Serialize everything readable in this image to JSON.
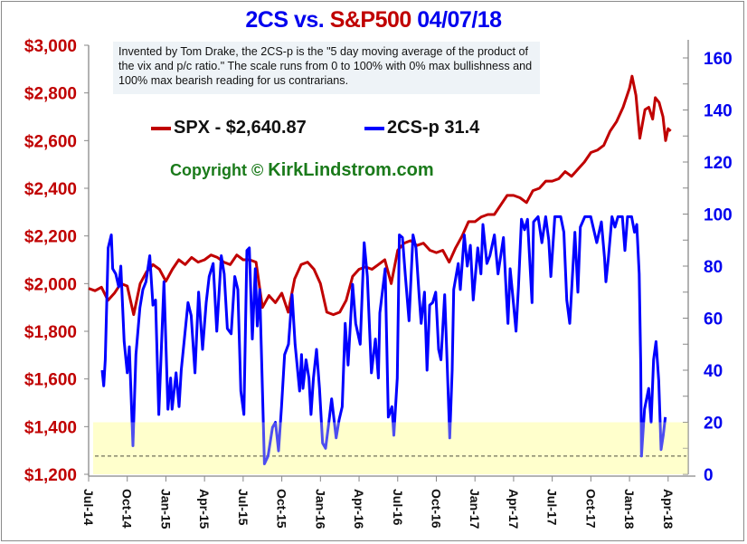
{
  "title": {
    "part1": "2CS vs.",
    "part2": "S&P500",
    "date": "04/07/18"
  },
  "note": "Invented by Tom Drake, the 2CS-p is the \"5 day moving average of the product of the vix and p/c ratio.\"   The scale runs from 0 to 100% with 0% max bullishness and 100% max bearish reading for us contrarians.",
  "legend": {
    "spx": "SPX - $2,640.87",
    "cs": "2CS-p 31.4"
  },
  "copyright": {
    "prefix": "Copyright ©",
    "site": "KirkLindstrom.com"
  },
  "colors": {
    "spx": "#c00000",
    "cs": "#0000ff",
    "band": "#ffffcc",
    "left_axis_text": "#c00000",
    "right_axis_text": "#0000ee",
    "copyright": "#1a7a1a"
  },
  "chart_data": {
    "type": "line",
    "title": "2CS vs. S&P500 04/07/18",
    "x_unit": "months since Jul-2014",
    "x_ticks": [
      "Jul-14",
      "Oct-14",
      "Jan-15",
      "Apr-15",
      "Jul-15",
      "Oct-15",
      "Jan-16",
      "Apr-16",
      "Jul-16",
      "Oct-16",
      "Jan-17",
      "Apr-17",
      "Jul-17",
      "Oct-17",
      "Jan-18",
      "Apr-18"
    ],
    "x_tick_months": [
      0,
      3,
      6,
      9,
      12,
      15,
      18,
      21,
      24,
      27,
      30,
      33,
      36,
      39,
      42,
      45
    ],
    "left_axis": {
      "ylim": [
        1200,
        3000
      ],
      "ticks": [
        1200,
        1400,
        1600,
        1800,
        2000,
        2200,
        2400,
        2600,
        2800,
        3000
      ],
      "labels": [
        "$1,200",
        "$1,400",
        "$1,600",
        "$1,800",
        "$2,000",
        "$2,200",
        "$2,400",
        "$2,600",
        "$2,800",
        "$3,000"
      ]
    },
    "right_axis": {
      "ylim": [
        0,
        160
      ],
      "ticks": [
        0,
        20,
        40,
        60,
        80,
        100,
        120,
        140,
        160
      ],
      "labels": [
        "0",
        "20",
        "40",
        "60",
        "80",
        "100",
        "120",
        "140",
        "160"
      ],
      "minor_step": 10
    },
    "band": {
      "from": 0,
      "to": 20
    },
    "reference_line": 7,
    "series": [
      {
        "name": "SPX",
        "axis": "left",
        "points": [
          [
            0,
            1980
          ],
          [
            0.5,
            1970
          ],
          [
            1,
            1985
          ],
          [
            1.5,
            1930
          ],
          [
            2,
            1960
          ],
          [
            2.5,
            2000
          ],
          [
            3,
            1990
          ],
          [
            3.5,
            1870
          ],
          [
            4,
            2000
          ],
          [
            4.5,
            2050
          ],
          [
            5,
            2080
          ],
          [
            5.5,
            2060
          ],
          [
            6,
            2010
          ],
          [
            6.5,
            2060
          ],
          [
            7,
            2100
          ],
          [
            7.5,
            2080
          ],
          [
            8,
            2110
          ],
          [
            8.5,
            2090
          ],
          [
            9,
            2100
          ],
          [
            9.5,
            2120
          ],
          [
            10,
            2110
          ],
          [
            10.5,
            2090
          ],
          [
            11,
            2080
          ],
          [
            11.5,
            2120
          ],
          [
            12,
            2100
          ],
          [
            12.5,
            2100
          ],
          [
            13,
            2090
          ],
          [
            13.5,
            1900
          ],
          [
            14,
            1950
          ],
          [
            14.5,
            1920
          ],
          [
            15,
            1960
          ],
          [
            15.5,
            1880
          ],
          [
            16,
            2020
          ],
          [
            16.5,
            2080
          ],
          [
            17,
            2090
          ],
          [
            17.5,
            2060
          ],
          [
            18,
            2000
          ],
          [
            18.5,
            1880
          ],
          [
            19,
            1870
          ],
          [
            19.5,
            1880
          ],
          [
            20,
            1930
          ],
          [
            20.5,
            2030
          ],
          [
            21,
            2060
          ],
          [
            21.5,
            2070
          ],
          [
            22,
            2060
          ],
          [
            22.5,
            2080
          ],
          [
            23,
            2100
          ],
          [
            23.5,
            2000
          ],
          [
            24,
            2140
          ],
          [
            24.5,
            2170
          ],
          [
            25,
            2180
          ],
          [
            25.5,
            2160
          ],
          [
            26,
            2170
          ],
          [
            26.5,
            2140
          ],
          [
            27,
            2130
          ],
          [
            27.5,
            2140
          ],
          [
            28,
            2090
          ],
          [
            28.5,
            2150
          ],
          [
            29,
            2200
          ],
          [
            29.5,
            2260
          ],
          [
            30,
            2260
          ],
          [
            30.5,
            2280
          ],
          [
            31,
            2290
          ],
          [
            31.5,
            2290
          ],
          [
            32,
            2330
          ],
          [
            32.5,
            2370
          ],
          [
            33,
            2370
          ],
          [
            33.5,
            2360
          ],
          [
            34,
            2340
          ],
          [
            34.5,
            2390
          ],
          [
            35,
            2400
          ],
          [
            35.5,
            2430
          ],
          [
            36,
            2430
          ],
          [
            36.5,
            2440
          ],
          [
            37,
            2470
          ],
          [
            37.5,
            2450
          ],
          [
            38,
            2480
          ],
          [
            38.5,
            2510
          ],
          [
            39,
            2550
          ],
          [
            39.5,
            2560
          ],
          [
            40,
            2580
          ],
          [
            40.5,
            2640
          ],
          [
            41,
            2680
          ],
          [
            41.5,
            2740
          ],
          [
            42,
            2820
          ],
          [
            42.2,
            2870
          ],
          [
            42.5,
            2790
          ],
          [
            42.8,
            2610
          ],
          [
            43.2,
            2730
          ],
          [
            43.5,
            2740
          ],
          [
            43.8,
            2690
          ],
          [
            44,
            2780
          ],
          [
            44.3,
            2760
          ],
          [
            44.6,
            2700
          ],
          [
            44.8,
            2600
          ],
          [
            45,
            2650
          ],
          [
            45.2,
            2640
          ]
        ]
      },
      {
        "name": "2CS-p",
        "axis": "right",
        "points": [
          [
            1.05,
            40
          ],
          [
            1.17,
            34
          ],
          [
            1.29,
            44
          ],
          [
            1.52,
            87
          ],
          [
            1.76,
            92
          ],
          [
            1.87,
            79
          ],
          [
            2.11,
            77
          ],
          [
            2.34,
            72
          ],
          [
            2.5,
            80
          ],
          [
            2.76,
            51
          ],
          [
            3.0,
            39
          ],
          [
            3.16,
            49
          ],
          [
            3.44,
            11
          ],
          [
            3.67,
            46
          ],
          [
            3.98,
            64
          ],
          [
            4.21,
            71
          ],
          [
            4.45,
            74
          ],
          [
            4.75,
            84
          ],
          [
            4.99,
            65
          ],
          [
            5.2,
            67
          ],
          [
            5.45,
            23
          ],
          [
            5.85,
            74
          ],
          [
            6.16,
            25
          ],
          [
            6.37,
            37
          ],
          [
            6.48,
            25
          ],
          [
            6.79,
            39
          ],
          [
            7.02,
            26
          ],
          [
            7.19,
            40
          ],
          [
            7.72,
            66
          ],
          [
            7.96,
            61
          ],
          [
            8.26,
            39
          ],
          [
            8.54,
            70
          ],
          [
            8.85,
            48
          ],
          [
            9.13,
            66
          ],
          [
            9.36,
            76
          ],
          [
            9.67,
            81
          ],
          [
            9.95,
            55
          ],
          [
            10.3,
            84
          ],
          [
            10.53,
            77
          ],
          [
            10.77,
            56
          ],
          [
            11.07,
            54
          ],
          [
            11.35,
            76
          ],
          [
            11.59,
            71
          ],
          [
            11.82,
            32
          ],
          [
            12.06,
            23
          ],
          [
            12.29,
            86
          ],
          [
            12.48,
            87
          ],
          [
            12.71,
            52
          ],
          [
            12.94,
            79
          ],
          [
            13.1,
            57
          ],
          [
            13.29,
            71
          ],
          [
            13.65,
            4
          ],
          [
            13.93,
            7
          ],
          [
            14.28,
            18
          ],
          [
            14.51,
            20
          ],
          [
            14.75,
            9
          ],
          [
            14.98,
            26
          ],
          [
            15.22,
            46
          ],
          [
            15.52,
            50
          ],
          [
            15.8,
            69
          ],
          [
            16.03,
            50
          ],
          [
            16.38,
            32
          ],
          [
            16.53,
            46
          ],
          [
            16.64,
            33
          ],
          [
            16.88,
            44
          ],
          [
            17.11,
            37
          ],
          [
            17.27,
            23
          ],
          [
            17.46,
            37
          ],
          [
            17.7,
            48
          ],
          [
            17.93,
            33
          ],
          [
            18.17,
            12
          ],
          [
            18.4,
            10
          ],
          [
            18.63,
            19
          ],
          [
            18.87,
            29
          ],
          [
            19.22,
            14
          ],
          [
            19.45,
            21
          ],
          [
            19.69,
            26
          ],
          [
            19.92,
            58
          ],
          [
            20.15,
            42
          ],
          [
            20.5,
            73
          ],
          [
            20.74,
            58
          ],
          [
            21.09,
            50
          ],
          [
            21.4,
            89
          ],
          [
            21.64,
            76
          ],
          [
            21.96,
            39
          ],
          [
            22.27,
            52
          ],
          [
            22.5,
            37
          ],
          [
            22.61,
            62
          ],
          [
            23.03,
            79
          ],
          [
            23.27,
            22
          ],
          [
            23.55,
            26
          ],
          [
            23.7,
            15
          ],
          [
            23.97,
            37
          ],
          [
            24.13,
            92
          ],
          [
            24.37,
            91
          ],
          [
            24.6,
            76
          ],
          [
            24.88,
            59
          ],
          [
            25.19,
            92
          ],
          [
            25.42,
            87
          ],
          [
            25.66,
            69
          ],
          [
            25.82,
            58
          ],
          [
            26.08,
            70
          ],
          [
            26.28,
            40
          ],
          [
            26.48,
            65
          ],
          [
            26.71,
            66
          ],
          [
            26.95,
            70
          ],
          [
            27.18,
            48
          ],
          [
            27.36,
            44
          ],
          [
            27.65,
            69
          ],
          [
            27.76,
            54
          ],
          [
            28.04,
            14
          ],
          [
            28.23,
            40
          ],
          [
            28.35,
            71
          ],
          [
            28.7,
            81
          ],
          [
            28.86,
            71
          ],
          [
            29.17,
            92
          ],
          [
            29.4,
            80
          ],
          [
            29.64,
            88
          ],
          [
            29.87,
            67
          ],
          [
            30.22,
            87
          ],
          [
            30.46,
            77
          ],
          [
            30.62,
            96
          ],
          [
            30.93,
            81
          ],
          [
            31.16,
            84
          ],
          [
            31.51,
            92
          ],
          [
            31.79,
            77
          ],
          [
            32.21,
            91
          ],
          [
            32.44,
            69
          ],
          [
            32.56,
            58
          ],
          [
            32.73,
            79
          ],
          [
            32.91,
            70
          ],
          [
            33.19,
            55
          ],
          [
            33.38,
            72
          ],
          [
            33.61,
            98
          ],
          [
            33.85,
            94
          ],
          [
            34.08,
            98
          ],
          [
            34.43,
            66
          ],
          [
            34.55,
            97
          ],
          [
            34.9,
            99
          ],
          [
            35.2,
            89
          ],
          [
            35.49,
            99
          ],
          [
            35.73,
            90
          ],
          [
            35.89,
            76
          ],
          [
            36.2,
            99
          ],
          [
            36.66,
            99
          ],
          [
            36.9,
            93
          ],
          [
            37.13,
            67
          ],
          [
            37.36,
            58
          ],
          [
            37.76,
            93
          ],
          [
            37.99,
            70
          ],
          [
            38.18,
            95
          ],
          [
            38.53,
            99
          ],
          [
            38.99,
            99
          ],
          [
            39.27,
            93
          ],
          [
            39.46,
            89
          ],
          [
            39.82,
            97
          ],
          [
            40.06,
            83
          ],
          [
            40.17,
            74
          ],
          [
            40.36,
            83
          ],
          [
            40.64,
            99
          ],
          [
            40.87,
            95
          ],
          [
            41.1,
            99
          ],
          [
            41.45,
            99
          ],
          [
            41.64,
            86
          ],
          [
            41.85,
            99
          ],
          [
            42.16,
            99
          ],
          [
            42.39,
            93
          ],
          [
            42.56,
            96
          ],
          [
            42.75,
            77
          ],
          [
            42.87,
            42
          ],
          [
            42.93,
            7
          ],
          [
            43.17,
            25
          ],
          [
            43.49,
            33
          ],
          [
            43.68,
            20
          ],
          [
            43.87,
            44
          ],
          [
            44.06,
            51
          ],
          [
            44.27,
            36
          ],
          [
            44.45,
            9.5
          ],
          [
            44.62,
            15
          ],
          [
            44.78,
            22
          ]
        ]
      }
    ]
  }
}
